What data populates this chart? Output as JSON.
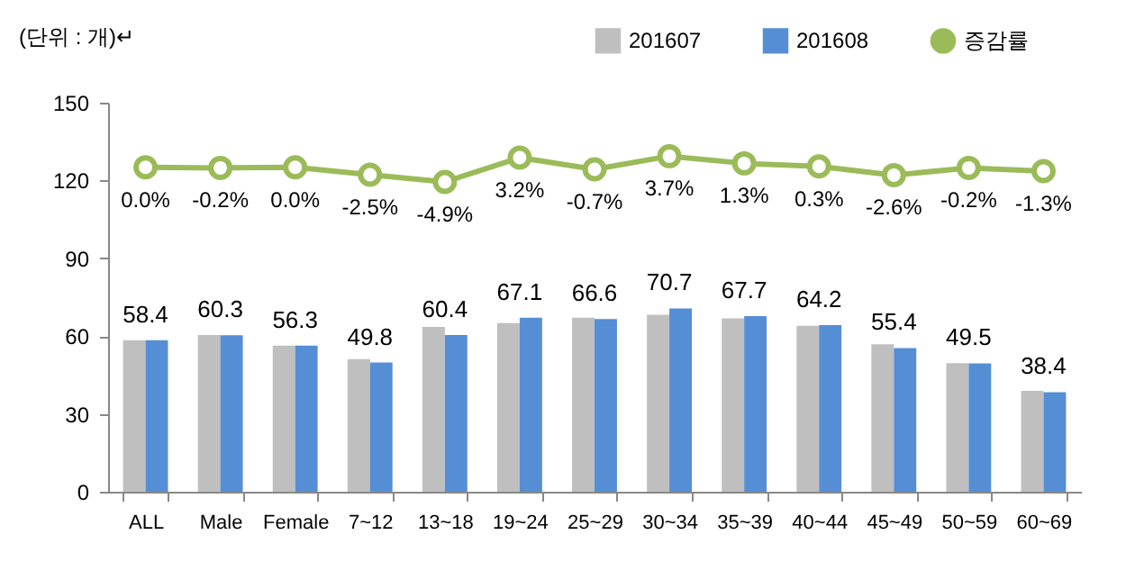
{
  "chart_data": {
    "type": "bar",
    "ylabel": "(단위 : 개)↵",
    "categories": [
      "ALL",
      "Male",
      "Female",
      "7~12",
      "13~18",
      "19~24",
      "25~29",
      "30~34",
      "35~39",
      "40~44",
      "45~49",
      "50~59",
      "60~69"
    ],
    "series": [
      {
        "name": "201607",
        "color": "#bfbfbf",
        "values": [
          58.4,
          60.4,
          56.3,
          51.1,
          63.5,
          65.0,
          67.1,
          68.2,
          66.8,
          64.0,
          56.9,
          49.6,
          38.9
        ]
      },
      {
        "name": "201608",
        "color": "#558ed5",
        "values": [
          58.4,
          60.3,
          56.3,
          49.8,
          60.4,
          67.1,
          66.6,
          70.7,
          67.7,
          64.2,
          55.4,
          49.5,
          38.4
        ],
        "value_labels": [
          "58.4",
          "60.3",
          "56.3",
          "49.8",
          "60.4",
          "67.1",
          "66.6",
          "70.7",
          "67.7",
          "64.2",
          "55.4",
          "49.5",
          "38.4"
        ]
      },
      {
        "name": "증감률",
        "type": "line",
        "axis": "y2",
        "color": "#9bbb59",
        "marker": "circle",
        "values": [
          0.0,
          -0.2,
          0.0,
          -2.5,
          -4.9,
          3.2,
          -0.7,
          3.7,
          1.3,
          0.3,
          -2.6,
          -0.2,
          -1.3
        ],
        "value_labels": [
          "0.0%",
          "-0.2%",
          "0.0%",
          "-2.5%",
          "-4.9%",
          "3.2%",
          "-0.7%",
          "3.7%",
          "1.3%",
          "0.3%",
          "-2.6%",
          "-0.2%",
          "-1.3%"
        ]
      }
    ],
    "ylim": [
      0,
      150
    ],
    "yticks": [
      0,
      30,
      60,
      90,
      120,
      150
    ],
    "y2lim": [
      -108,
      21.5
    ],
    "legend": "top right"
  }
}
